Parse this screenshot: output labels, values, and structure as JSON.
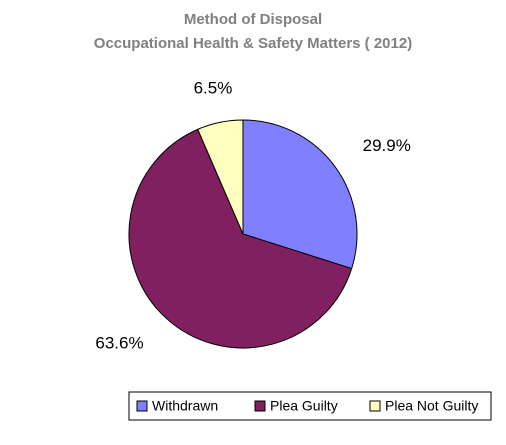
{
  "chart_data": {
    "type": "pie",
    "title": "Method of Disposal",
    "subtitle": "Occupational Health & Safety Matters ( 2012)",
    "categories": [
      "Withdrawn",
      "Plea Guilty",
      "Plea Not Guilty"
    ],
    "values": [
      29.9,
      63.6,
      6.5
    ],
    "value_labels": [
      "29.9%",
      "63.6%",
      "6.5%"
    ],
    "colors": [
      "#8080ff",
      "#802060",
      "#ffffc0"
    ],
    "legend": "bottom"
  }
}
